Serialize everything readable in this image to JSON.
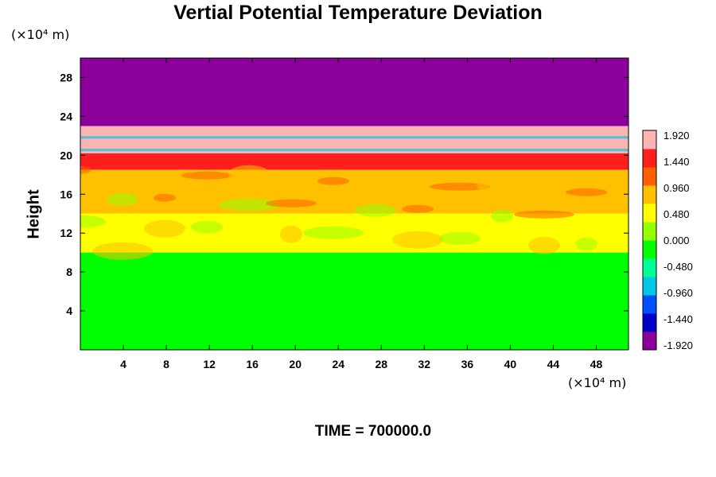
{
  "chart_data": {
    "type": "heatmap",
    "title": "Vertial Potential Temperature Deviation",
    "ylabel": "Height",
    "xlabel": "",
    "x_unit": "(×10⁴ m)",
    "y_unit": "(×10⁴ m)",
    "xlim": [
      0,
      51
    ],
    "ylim": [
      0,
      30
    ],
    "x_ticks": [
      4,
      8,
      12,
      16,
      20,
      24,
      28,
      32,
      36,
      40,
      44,
      48
    ],
    "y_ticks": [
      4,
      8,
      12,
      16,
      20,
      24,
      28
    ],
    "colorbar": {
      "labels": [
        "1.920",
        "1.440",
        "0.960",
        "0.480",
        "0.000",
        "-0.480",
        "-0.960",
        "-1.440",
        "-1.920"
      ],
      "range": [
        -1.92,
        1.92
      ],
      "colors": [
        "#8b009b",
        "#0000c8",
        "#0050ff",
        "#00c8e6",
        "#00ff96",
        "#00ff00",
        "#96ff00",
        "#ffff00",
        "#ffc000",
        "#ff6000",
        "#ff1e1e",
        "#ffb4b4"
      ]
    },
    "layers": [
      {
        "y": [
          23,
          30
        ],
        "value": -1.92
      },
      {
        "y": [
          20.2,
          23
        ],
        "value": 1.92
      },
      {
        "y": [
          18.5,
          20.2
        ],
        "value": 1.6
      },
      {
        "y": [
          14,
          18.5
        ],
        "value": 0.9
      },
      {
        "y": [
          10,
          14
        ],
        "value": 0.4
      },
      {
        "y": [
          0,
          10
        ],
        "value": -0.1
      }
    ]
  },
  "footer": {
    "time_label": "TIME = 700000.0"
  }
}
